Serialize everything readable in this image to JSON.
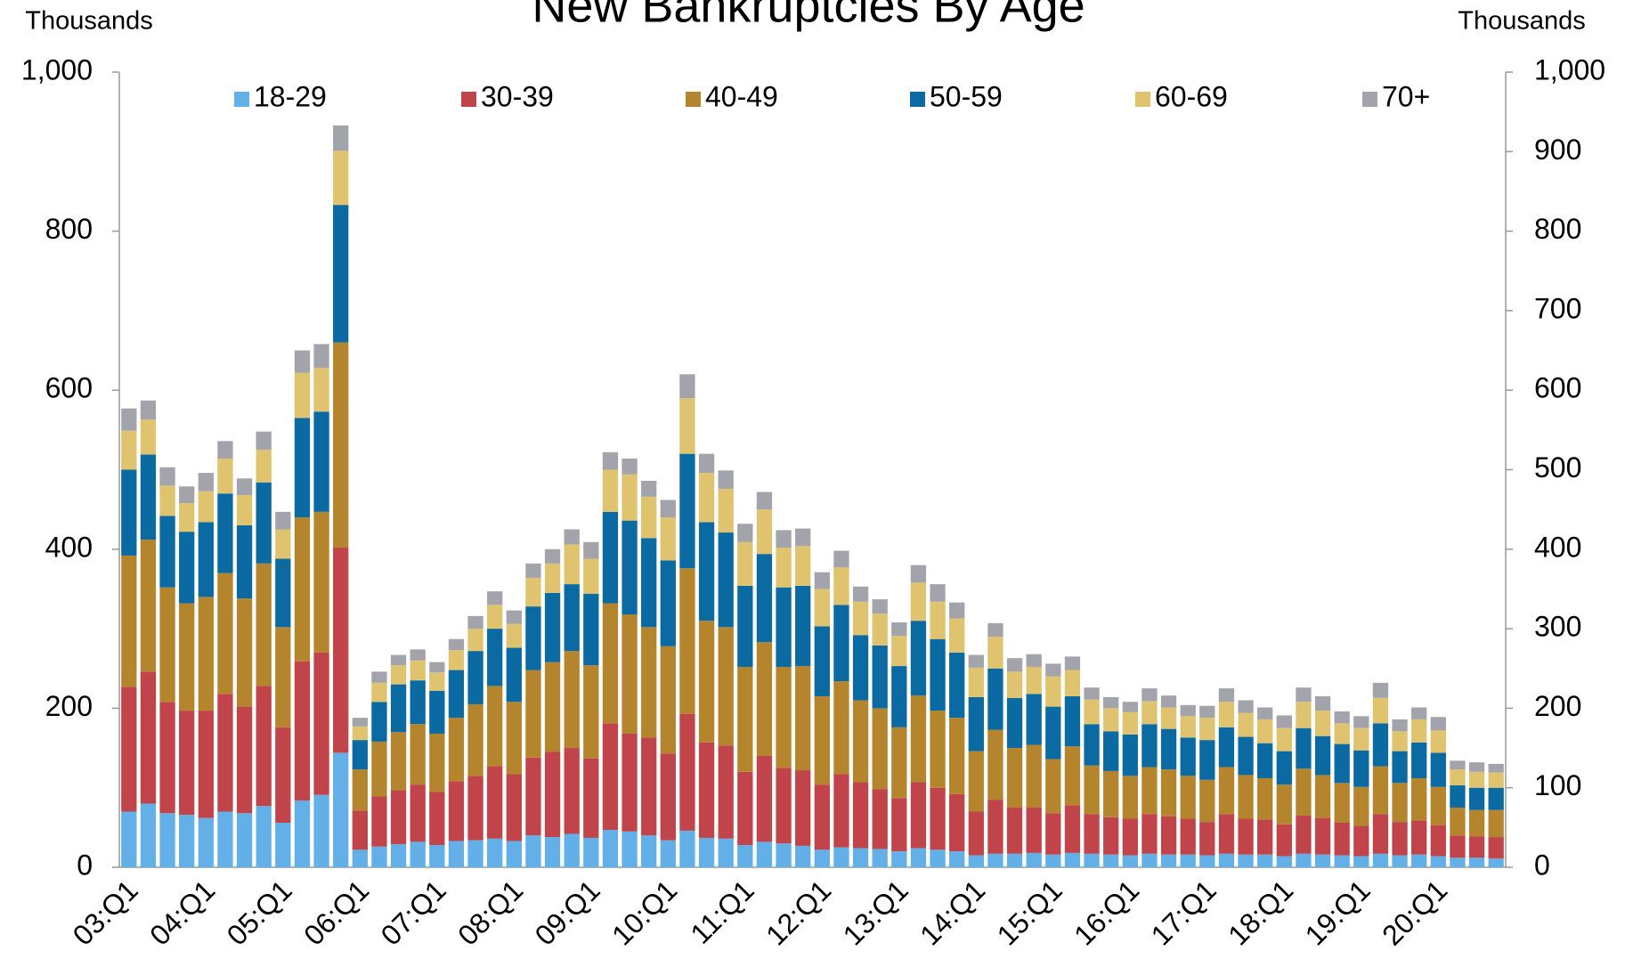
{
  "chart_data": {
    "type": "bar",
    "stacked": true,
    "title": "New Bankruptcies By Age",
    "ylabel": "Thousands",
    "y2label": "Thousands",
    "categories": [
      "03:Q1",
      null,
      null,
      null,
      "04:Q1",
      null,
      null,
      null,
      "05:Q1",
      null,
      null,
      null,
      "06:Q1",
      null,
      null,
      null,
      "07:Q1",
      null,
      null,
      null,
      "08:Q1",
      null,
      null,
      null,
      "09:Q1",
      null,
      null,
      null,
      "10:Q1",
      null,
      null,
      null,
      "11:Q1",
      null,
      null,
      null,
      "12:Q1",
      null,
      null,
      null,
      "13:Q1",
      null,
      null,
      null,
      "14:Q1",
      null,
      null,
      null,
      "15:Q1",
      null,
      null,
      null,
      "16:Q1",
      null,
      null,
      null,
      "17:Q1",
      null,
      null,
      null,
      "18:Q1",
      null,
      null,
      null,
      "19:Q1",
      null,
      null,
      null,
      "20:Q1",
      null,
      null,
      null
    ],
    "series": [
      {
        "name": "18-29",
        "color": "#63b0e8",
        "values": [
          70,
          80,
          68,
          66,
          62,
          70,
          68,
          77,
          56,
          84,
          91,
          144,
          22,
          26,
          29,
          32,
          28,
          33,
          34,
          36,
          33,
          40,
          38,
          42,
          37,
          47,
          45,
          40,
          34,
          46,
          37,
          36,
          28,
          32,
          30,
          27,
          22,
          25,
          24,
          23,
          20,
          24,
          22,
          20,
          15,
          17,
          17,
          18,
          16,
          18,
          17,
          16,
          15,
          17,
          16,
          16,
          15,
          17,
          16,
          16,
          14,
          17,
          16,
          15,
          14,
          17,
          15,
          16,
          14,
          12,
          12,
          11
        ]
      },
      {
        "name": "30-39",
        "color": "#c0444a",
        "values": [
          157,
          166,
          140,
          131,
          135,
          148,
          134,
          151,
          120,
          175,
          179,
          258,
          49,
          63,
          68,
          72,
          67,
          75,
          81,
          91,
          84,
          98,
          107,
          108,
          100,
          134,
          123,
          123,
          109,
          147,
          120,
          117,
          92,
          108,
          95,
          95,
          82,
          92,
          83,
          75,
          67,
          83,
          78,
          72,
          55,
          68,
          58,
          57,
          52,
          60,
          50,
          47,
          46,
          50,
          48,
          45,
          42,
          50,
          45,
          44,
          40,
          48,
          46,
          41,
          38,
          50,
          42,
          43,
          39,
          28,
          27,
          27
        ]
      },
      {
        "name": "40-49",
        "color": "#b5852e",
        "values": [
          165,
          166,
          144,
          135,
          143,
          152,
          136,
          154,
          126,
          181,
          177,
          258,
          52,
          69,
          73,
          76,
          73,
          80,
          90,
          101,
          91,
          110,
          113,
          122,
          117,
          151,
          150,
          139,
          135,
          183,
          153,
          149,
          132,
          143,
          127,
          131,
          111,
          117,
          103,
          102,
          89,
          109,
          97,
          96,
          76,
          88,
          75,
          79,
          68,
          74,
          61,
          58,
          54,
          59,
          59,
          54,
          53,
          59,
          55,
          52,
          50,
          59,
          54,
          50,
          49,
          60,
          49,
          53,
          48,
          35,
          33,
          34
        ]
      },
      {
        "name": "50-59",
        "color": "#0a6aa1",
        "values": [
          108,
          107,
          90,
          90,
          94,
          100,
          92,
          102,
          86,
          125,
          126,
          173,
          37,
          50,
          60,
          55,
          54,
          60,
          67,
          72,
          68,
          80,
          87,
          84,
          90,
          115,
          118,
          112,
          108,
          144,
          124,
          119,
          102,
          111,
          100,
          101,
          88,
          96,
          82,
          79,
          77,
          94,
          90,
          82,
          68,
          77,
          63,
          64,
          66,
          63,
          52,
          50,
          52,
          54,
          51,
          48,
          50,
          50,
          48,
          44,
          42,
          51,
          49,
          49,
          46,
          54,
          40,
          45,
          43,
          28,
          28,
          28
        ]
      },
      {
        "name": "60-69",
        "color": "#e0c36e",
        "values": [
          49,
          44,
          38,
          36,
          39,
          44,
          38,
          41,
          37,
          57,
          55,
          68,
          17,
          24,
          24,
          25,
          23,
          25,
          28,
          30,
          30,
          36,
          37,
          50,
          44,
          53,
          58,
          52,
          54,
          70,
          62,
          55,
          55,
          56,
          50,
          50,
          47,
          47,
          42,
          40,
          38,
          48,
          47,
          43,
          37,
          40,
          33,
          34,
          38,
          33,
          31,
          29,
          28,
          29,
          27,
          27,
          28,
          32,
          30,
          30,
          29,
          33,
          32,
          26,
          28,
          32,
          25,
          29,
          28,
          20,
          20,
          19
        ]
      },
      {
        "name": "70+",
        "color": "#a3a3ab",
        "values": [
          28,
          24,
          23,
          21,
          23,
          22,
          21,
          23,
          22,
          28,
          30,
          32,
          11,
          14,
          13,
          14,
          13,
          14,
          16,
          17,
          17,
          18,
          18,
          19,
          21,
          22,
          20,
          20,
          22,
          30,
          24,
          23,
          23,
          22,
          22,
          22,
          21,
          21,
          19,
          18,
          17,
          22,
          22,
          20,
          16,
          17,
          17,
          16,
          16,
          17,
          15,
          14,
          13,
          16,
          15,
          14,
          15,
          17,
          16,
          15,
          16,
          18,
          18,
          15,
          15,
          19,
          15,
          15,
          17,
          11,
          12,
          11
        ]
      }
    ],
    "ylim": [
      0,
      1000
    ],
    "yticks": [
      0,
      200,
      400,
      600,
      800,
      {
        "value": 1000,
        "label": "1,000"
      }
    ],
    "y2lim": [
      0,
      1000
    ],
    "y2ticks": [
      0,
      100,
      200,
      300,
      400,
      500,
      600,
      700,
      800,
      900,
      {
        "value": 1000,
        "label": "1,000"
      }
    ],
    "legend": "top",
    "grid": false
  }
}
